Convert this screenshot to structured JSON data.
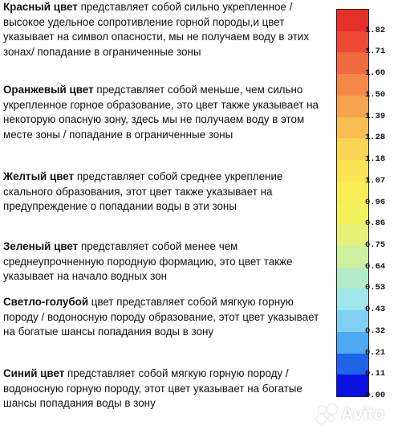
{
  "descriptions": [
    {
      "title": "Красный цвет",
      "text": " представляет собой сильно укрепленное / высокое удельное сопротивление горной породы,и цвет указывает на символ опасности, мы не получаем воду в этих зонах/ попадание в ограниченные зоны"
    },
    {
      "title": "Оранжевый цвет",
      "text": " представляет собой меньше, чем сильно укрепленное горное образование, это цвет также указывает на некоторую опасную зону, здесь мы не получаем воду в этом месте зоны / попадание в ограниченные зоны"
    },
    {
      "title": "Желтый цвет",
      "text": " представляет собой среднее укрепление скального образования, этот цвет также указывает на предупреждение о попадании воды в эти зоны"
    },
    {
      "title": "Зеленый цвет",
      "text": " представляет собой менее чем среднеупрочненную породную формацию, это цвет также указывает на начало водных зон"
    },
    {
      "title": "Светло-голубой",
      "text": " цвет представляет собой мягкую горную породу / водоносную породу образование, этот цвет указывает на богатые шансы попадания воды в зону"
    },
    {
      "title": "Синий цвет",
      "text": " представляет собой мягкую горную породу / водоносную горную породу, этот цвет указывает на богатые шансы попадания воды в зону"
    }
  ],
  "scale": {
    "ticks": [
      "1.82",
      "1.71",
      "1.60",
      "1.50",
      "1.39",
      "1.28",
      "1.18",
      "1.07",
      "0.96",
      "0.86",
      "0.75",
      "0.64",
      "0.53",
      "0.43",
      "0.32",
      "0.21",
      "0.11",
      "0.00"
    ],
    "colors": [
      "#e8302a",
      "#ec4a34",
      "#f06a40",
      "#f38848",
      "#f6a44e",
      "#f8be52",
      "#f9d455",
      "#fae455",
      "#f9ef55",
      "#f3f25e",
      "#e4f27a",
      "#cdf0a0",
      "#b5ecc8",
      "#a0e6ea",
      "#7fd0f4",
      "#4fa8f2",
      "#1f64e8",
      "#0a10e0"
    ]
  },
  "watermark": "Avito"
}
